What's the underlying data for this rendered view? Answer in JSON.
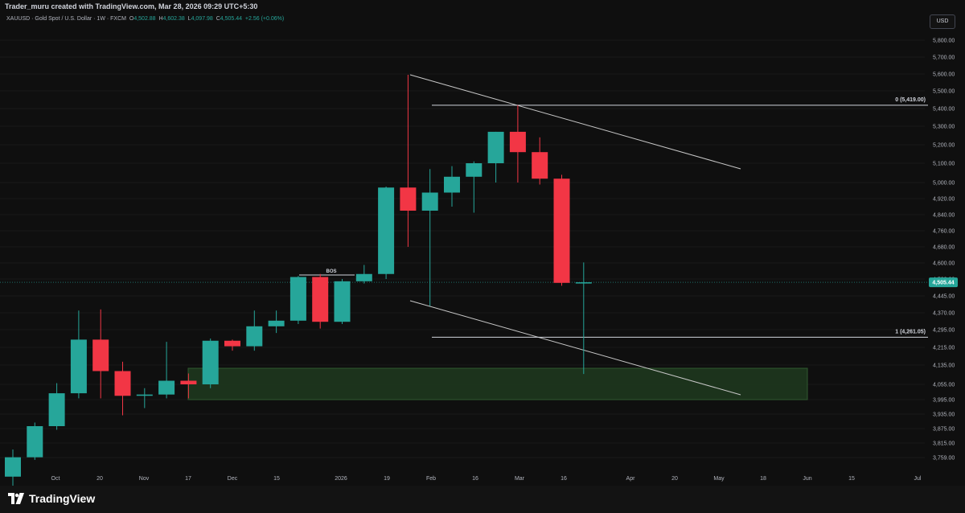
{
  "header": {
    "credit": "Trader_muru created with TradingView.com, Mar 28, 2026 09:29 UTC+5:30"
  },
  "legend": {
    "symbol": "XAUUSD · Gold Spot / U.S. Dollar · 1W · FXCM",
    "o_label": "O",
    "o_value": "4,502.88",
    "h_label": "H",
    "h_value": "4,602.38",
    "l_label": "L",
    "l_value": "4,097.98",
    "c_label": "C",
    "c_value": "4,505.44",
    "change": "+2.56 (+0.06%)"
  },
  "currency_button": "USD",
  "footer": {
    "brand": "TradingView"
  },
  "colors": {
    "up": "#26a69a",
    "down": "#f23645",
    "background": "#0f0f0f",
    "zone": "#1e3a1e",
    "price_tag": "#26a69a"
  },
  "chart_data": {
    "type": "candlestick",
    "symbol": "XAUUSD",
    "timeframe": "1W",
    "current_price": 4505.44,
    "current_price_label": "4,505.44",
    "y_ticks": [
      "5,800.00",
      "5,700.00",
      "5,600.00",
      "5,500.00",
      "5,400.00",
      "5,300.00",
      "5,200.00",
      "5,100.00",
      "5,000.00",
      "4,920.00",
      "4,840.00",
      "4,760.00",
      "4,680.00",
      "4,600.00",
      "4,520.00",
      "4,445.00",
      "4,370.00",
      "4,295.00",
      "4,215.00",
      "4,135.00",
      "4,055.00",
      "3,995.00",
      "3,935.00",
      "3,875.00",
      "3,815.00",
      "3,759.00"
    ],
    "x_ticks": [
      "Oct",
      "20",
      "Nov",
      "17",
      "Dec",
      "15",
      "2026",
      "19",
      "Feb",
      "16",
      "Mar",
      "16",
      "Apr",
      "20",
      "May",
      "18",
      "Jun",
      "15",
      "Jul"
    ],
    "candles": [
      {
        "o": 3685,
        "h": 3790,
        "l": 3630,
        "c": 3760
      },
      {
        "o": 3760,
        "h": 3900,
        "l": 3750,
        "c": 3885
      },
      {
        "o": 3885,
        "h": 4060,
        "l": 3870,
        "c": 4020
      },
      {
        "o": 4020,
        "h": 4380,
        "l": 4000,
        "c": 4250
      },
      {
        "o": 4250,
        "h": 4385,
        "l": 4000,
        "c": 4110
      },
      {
        "o": 4110,
        "h": 4150,
        "l": 3930,
        "c": 4010
      },
      {
        "o": 4010,
        "h": 4040,
        "l": 3960,
        "c": 4015
      },
      {
        "o": 4015,
        "h": 4240,
        "l": 4000,
        "c": 4070
      },
      {
        "o": 4070,
        "h": 4100,
        "l": 4000,
        "c": 4055
      },
      {
        "o": 4055,
        "h": 4255,
        "l": 4040,
        "c": 4245
      },
      {
        "o": 4245,
        "h": 4250,
        "l": 4200,
        "c": 4220
      },
      {
        "o": 4220,
        "h": 4380,
        "l": 4200,
        "c": 4310
      },
      {
        "o": 4310,
        "h": 4380,
        "l": 4280,
        "c": 4335
      },
      {
        "o": 4335,
        "h": 4535,
        "l": 4320,
        "c": 4530
      },
      {
        "o": 4530,
        "h": 4545,
        "l": 4300,
        "c": 4330
      },
      {
        "o": 4330,
        "h": 4520,
        "l": 4320,
        "c": 4510
      },
      {
        "o": 4510,
        "h": 4590,
        "l": 4500,
        "c": 4545
      },
      {
        "o": 4545,
        "h": 4980,
        "l": 4520,
        "c": 4975
      },
      {
        "o": 4975,
        "h": 5595,
        "l": 4680,
        "c": 4860
      },
      {
        "o": 4860,
        "h": 5070,
        "l": 4400,
        "c": 4950
      },
      {
        "o": 4950,
        "h": 5085,
        "l": 4880,
        "c": 5030
      },
      {
        "o": 5030,
        "h": 5110,
        "l": 4850,
        "c": 5100
      },
      {
        "o": 5100,
        "h": 5270,
        "l": 5000,
        "c": 5270
      },
      {
        "o": 5270,
        "h": 5419,
        "l": 5000,
        "c": 5160
      },
      {
        "o": 5160,
        "h": 5240,
        "l": 4990,
        "c": 5020
      },
      {
        "o": 5020,
        "h": 5040,
        "l": 4490,
        "c": 4502.88
      },
      {
        "o": 4502.88,
        "h": 4602.38,
        "l": 4097.98,
        "c": 4505.44
      }
    ],
    "annotations": {
      "bos_label": "BOS",
      "fib_top_label": "0 (5,419.00)",
      "fib_bottom_label": "1 (4,261.05)"
    }
  }
}
